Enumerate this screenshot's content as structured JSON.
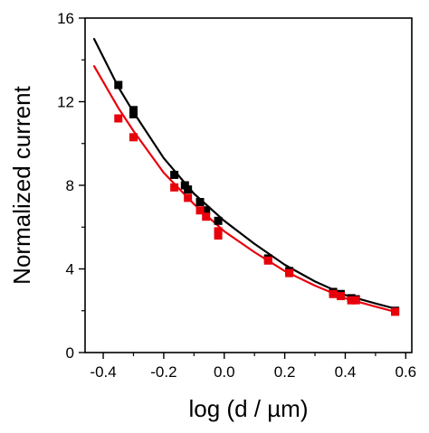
{
  "chart_data": {
    "type": "scatter",
    "title": "",
    "xlabel": "log (d / µm)",
    "ylabel": "Normalized current",
    "xlim": [
      -0.46,
      0.62
    ],
    "ylim": [
      0,
      16
    ],
    "xticks": [
      -0.4,
      -0.2,
      0.0,
      0.2,
      0.4,
      0.6
    ],
    "xtick_labels": [
      "-0.4",
      "-0.2",
      "0.0",
      "0.2",
      "0.4",
      "0.6"
    ],
    "yticks": [
      0,
      4,
      8,
      12,
      16
    ],
    "ytick_labels": [
      "0",
      "4",
      "8",
      "12",
      "16"
    ],
    "grid": false,
    "legend": "none",
    "series": [
      {
        "color": "#000000",
        "marker": "square",
        "points": [
          {
            "x": -0.35,
            "y": 12.8
          },
          {
            "x": -0.3,
            "y": 11.6
          },
          {
            "x": -0.3,
            "y": 11.4
          },
          {
            "x": -0.165,
            "y": 8.5
          },
          {
            "x": -0.13,
            "y": 8.0
          },
          {
            "x": -0.12,
            "y": 7.8
          },
          {
            "x": -0.08,
            "y": 7.2
          },
          {
            "x": -0.06,
            "y": 6.8
          },
          {
            "x": -0.02,
            "y": 6.3
          },
          {
            "x": 0.145,
            "y": 4.5
          },
          {
            "x": 0.215,
            "y": 3.9
          },
          {
            "x": 0.36,
            "y": 2.9
          },
          {
            "x": 0.385,
            "y": 2.8
          },
          {
            "x": 0.42,
            "y": 2.6
          },
          {
            "x": 0.435,
            "y": 2.55
          },
          {
            "x": 0.565,
            "y": 2.0
          }
        ],
        "fit": [
          {
            "x": -0.43,
            "y": 15.0
          },
          {
            "x": -0.35,
            "y": 12.7
          },
          {
            "x": -0.3,
            "y": 11.5
          },
          {
            "x": -0.2,
            "y": 9.3
          },
          {
            "x": -0.1,
            "y": 7.6
          },
          {
            "x": 0.0,
            "y": 6.3
          },
          {
            "x": 0.1,
            "y": 5.2
          },
          {
            "x": 0.2,
            "y": 4.2
          },
          {
            "x": 0.3,
            "y": 3.4
          },
          {
            "x": 0.4,
            "y": 2.75
          },
          {
            "x": 0.5,
            "y": 2.35
          },
          {
            "x": 0.565,
            "y": 2.1
          }
        ]
      },
      {
        "color": "#e8000b",
        "marker": "square",
        "points": [
          {
            "x": -0.35,
            "y": 11.2
          },
          {
            "x": -0.3,
            "y": 10.3
          },
          {
            "x": -0.165,
            "y": 7.9
          },
          {
            "x": -0.12,
            "y": 7.4
          },
          {
            "x": -0.08,
            "y": 6.8
          },
          {
            "x": -0.06,
            "y": 6.5
          },
          {
            "x": -0.02,
            "y": 5.8
          },
          {
            "x": -0.02,
            "y": 5.6
          },
          {
            "x": 0.145,
            "y": 4.4
          },
          {
            "x": 0.215,
            "y": 3.8
          },
          {
            "x": 0.36,
            "y": 2.8
          },
          {
            "x": 0.385,
            "y": 2.7
          },
          {
            "x": 0.42,
            "y": 2.5
          },
          {
            "x": 0.435,
            "y": 2.5
          },
          {
            "x": 0.565,
            "y": 1.95
          }
        ],
        "fit": [
          {
            "x": -0.43,
            "y": 13.7
          },
          {
            "x": -0.35,
            "y": 11.7
          },
          {
            "x": -0.3,
            "y": 10.6
          },
          {
            "x": -0.2,
            "y": 8.6
          },
          {
            "x": -0.1,
            "y": 7.1
          },
          {
            "x": 0.0,
            "y": 5.8
          },
          {
            "x": 0.1,
            "y": 4.8
          },
          {
            "x": 0.2,
            "y": 3.9
          },
          {
            "x": 0.3,
            "y": 3.2
          },
          {
            "x": 0.4,
            "y": 2.6
          },
          {
            "x": 0.5,
            "y": 2.2
          },
          {
            "x": 0.565,
            "y": 1.95
          }
        ]
      }
    ]
  }
}
